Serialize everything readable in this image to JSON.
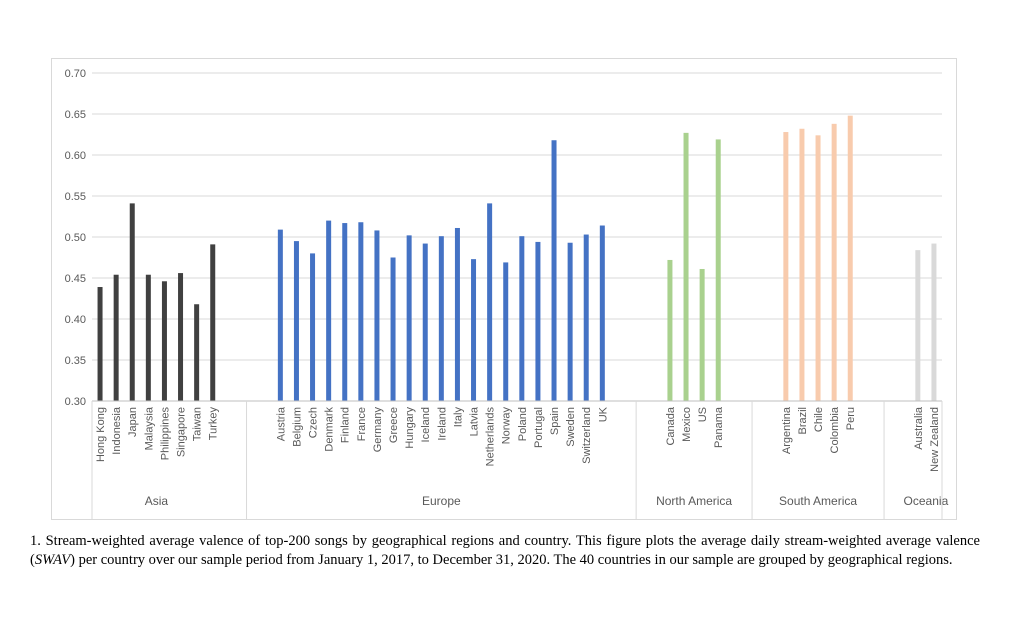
{
  "chart_data": {
    "type": "bar",
    "title": "",
    "xlabel": "",
    "ylabel": "",
    "ylim": [
      0.3,
      0.7
    ],
    "yticks": [
      "0.30",
      "0.35",
      "0.40",
      "0.45",
      "0.50",
      "0.55",
      "0.60",
      "0.65",
      "0.70"
    ],
    "grid": true,
    "legend": "none",
    "groups": [
      {
        "name": "Asia",
        "color": "#404040",
        "categories": [
          "Hong Kong",
          "Indonesia",
          "Japan",
          "Malaysia",
          "Philippines",
          "Singapore",
          "Taiwan",
          "Turkey"
        ],
        "values": [
          0.439,
          0.454,
          0.541,
          0.454,
          0.446,
          0.456,
          0.418,
          0.491
        ]
      },
      {
        "name": "Europe",
        "color": "#4472c4",
        "categories": [
          "Austria",
          "Belgium",
          "Czech",
          "Denmark",
          "Finland",
          "France",
          "Germany",
          "Greece",
          "Hungary",
          "Iceland",
          "Ireland",
          "Italy",
          "Latvia",
          "Netherlands",
          "Norway",
          "Poland",
          "Portugal",
          "Spain",
          "Sweden",
          "Switzerland",
          "UK"
        ],
        "values": [
          0.509,
          0.495,
          0.48,
          0.52,
          0.517,
          0.518,
          0.508,
          0.475,
          0.502,
          0.492,
          0.501,
          0.511,
          0.473,
          0.541,
          0.469,
          0.501,
          0.494,
          0.618,
          0.493,
          0.503,
          0.514
        ]
      },
      {
        "name": "North America",
        "color": "#a9d18e",
        "categories": [
          "Canada",
          "Mexico",
          "US",
          "Panama"
        ],
        "values": [
          0.472,
          0.627,
          0.461,
          0.619
        ]
      },
      {
        "name": "South America",
        "color": "#f8cbad",
        "categories": [
          "Argentina",
          "Brazil",
          "Chile",
          "Colombia",
          "Peru"
        ],
        "values": [
          0.628,
          0.632,
          0.624,
          0.638,
          0.648
        ]
      },
      {
        "name": "Oceania",
        "color": "#d9d9d9",
        "categories": [
          "Australia",
          "New Zealand"
        ],
        "values": [
          0.484,
          0.492
        ]
      }
    ]
  },
  "caption": "1. Stream-weighted average valence of top-200 songs by geographical regions and country. This figure plots the average daily stream-weighted average valence (SWAV) per country over our sample period from January 1, 2017, to December 31, 2020. The 40 countries in our sample are grouped by geographical regions.",
  "caption_parts": {
    "before": "1. Stream-weighted average valence of top-200 songs by geographical regions and country. This figure plots the average daily stream-weighted average valence (",
    "italic": "SWAV",
    "after": ") per country over our sample period from January 1, 2017, to December 31, 2020. The 40 countries in our sample are grouped by geographical regions."
  }
}
